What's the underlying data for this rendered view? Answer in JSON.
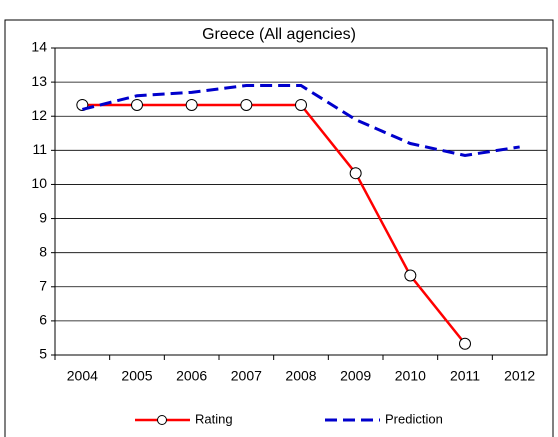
{
  "chart_data": {
    "type": "line",
    "title": "Greece (All agencies)",
    "categories": [
      "2004",
      "2005",
      "2006",
      "2007",
      "2008",
      "2009",
      "2010",
      "2011",
      "2012"
    ],
    "series": [
      {
        "name": "Rating",
        "color": "#ff0000",
        "values": [
          12.33,
          12.33,
          12.33,
          12.33,
          12.33,
          10.33,
          7.33,
          5.33,
          null
        ]
      },
      {
        "name": "Prediction",
        "color": "#0000cc",
        "values": [
          12.2,
          12.6,
          12.7,
          12.9,
          12.9,
          11.9,
          11.2,
          10.85,
          11.1
        ]
      }
    ],
    "ylim": [
      5,
      14
    ],
    "yticks": [
      5,
      6,
      7,
      8,
      9,
      10,
      11,
      12,
      13,
      14
    ],
    "grid": true,
    "legend": "bottom"
  }
}
